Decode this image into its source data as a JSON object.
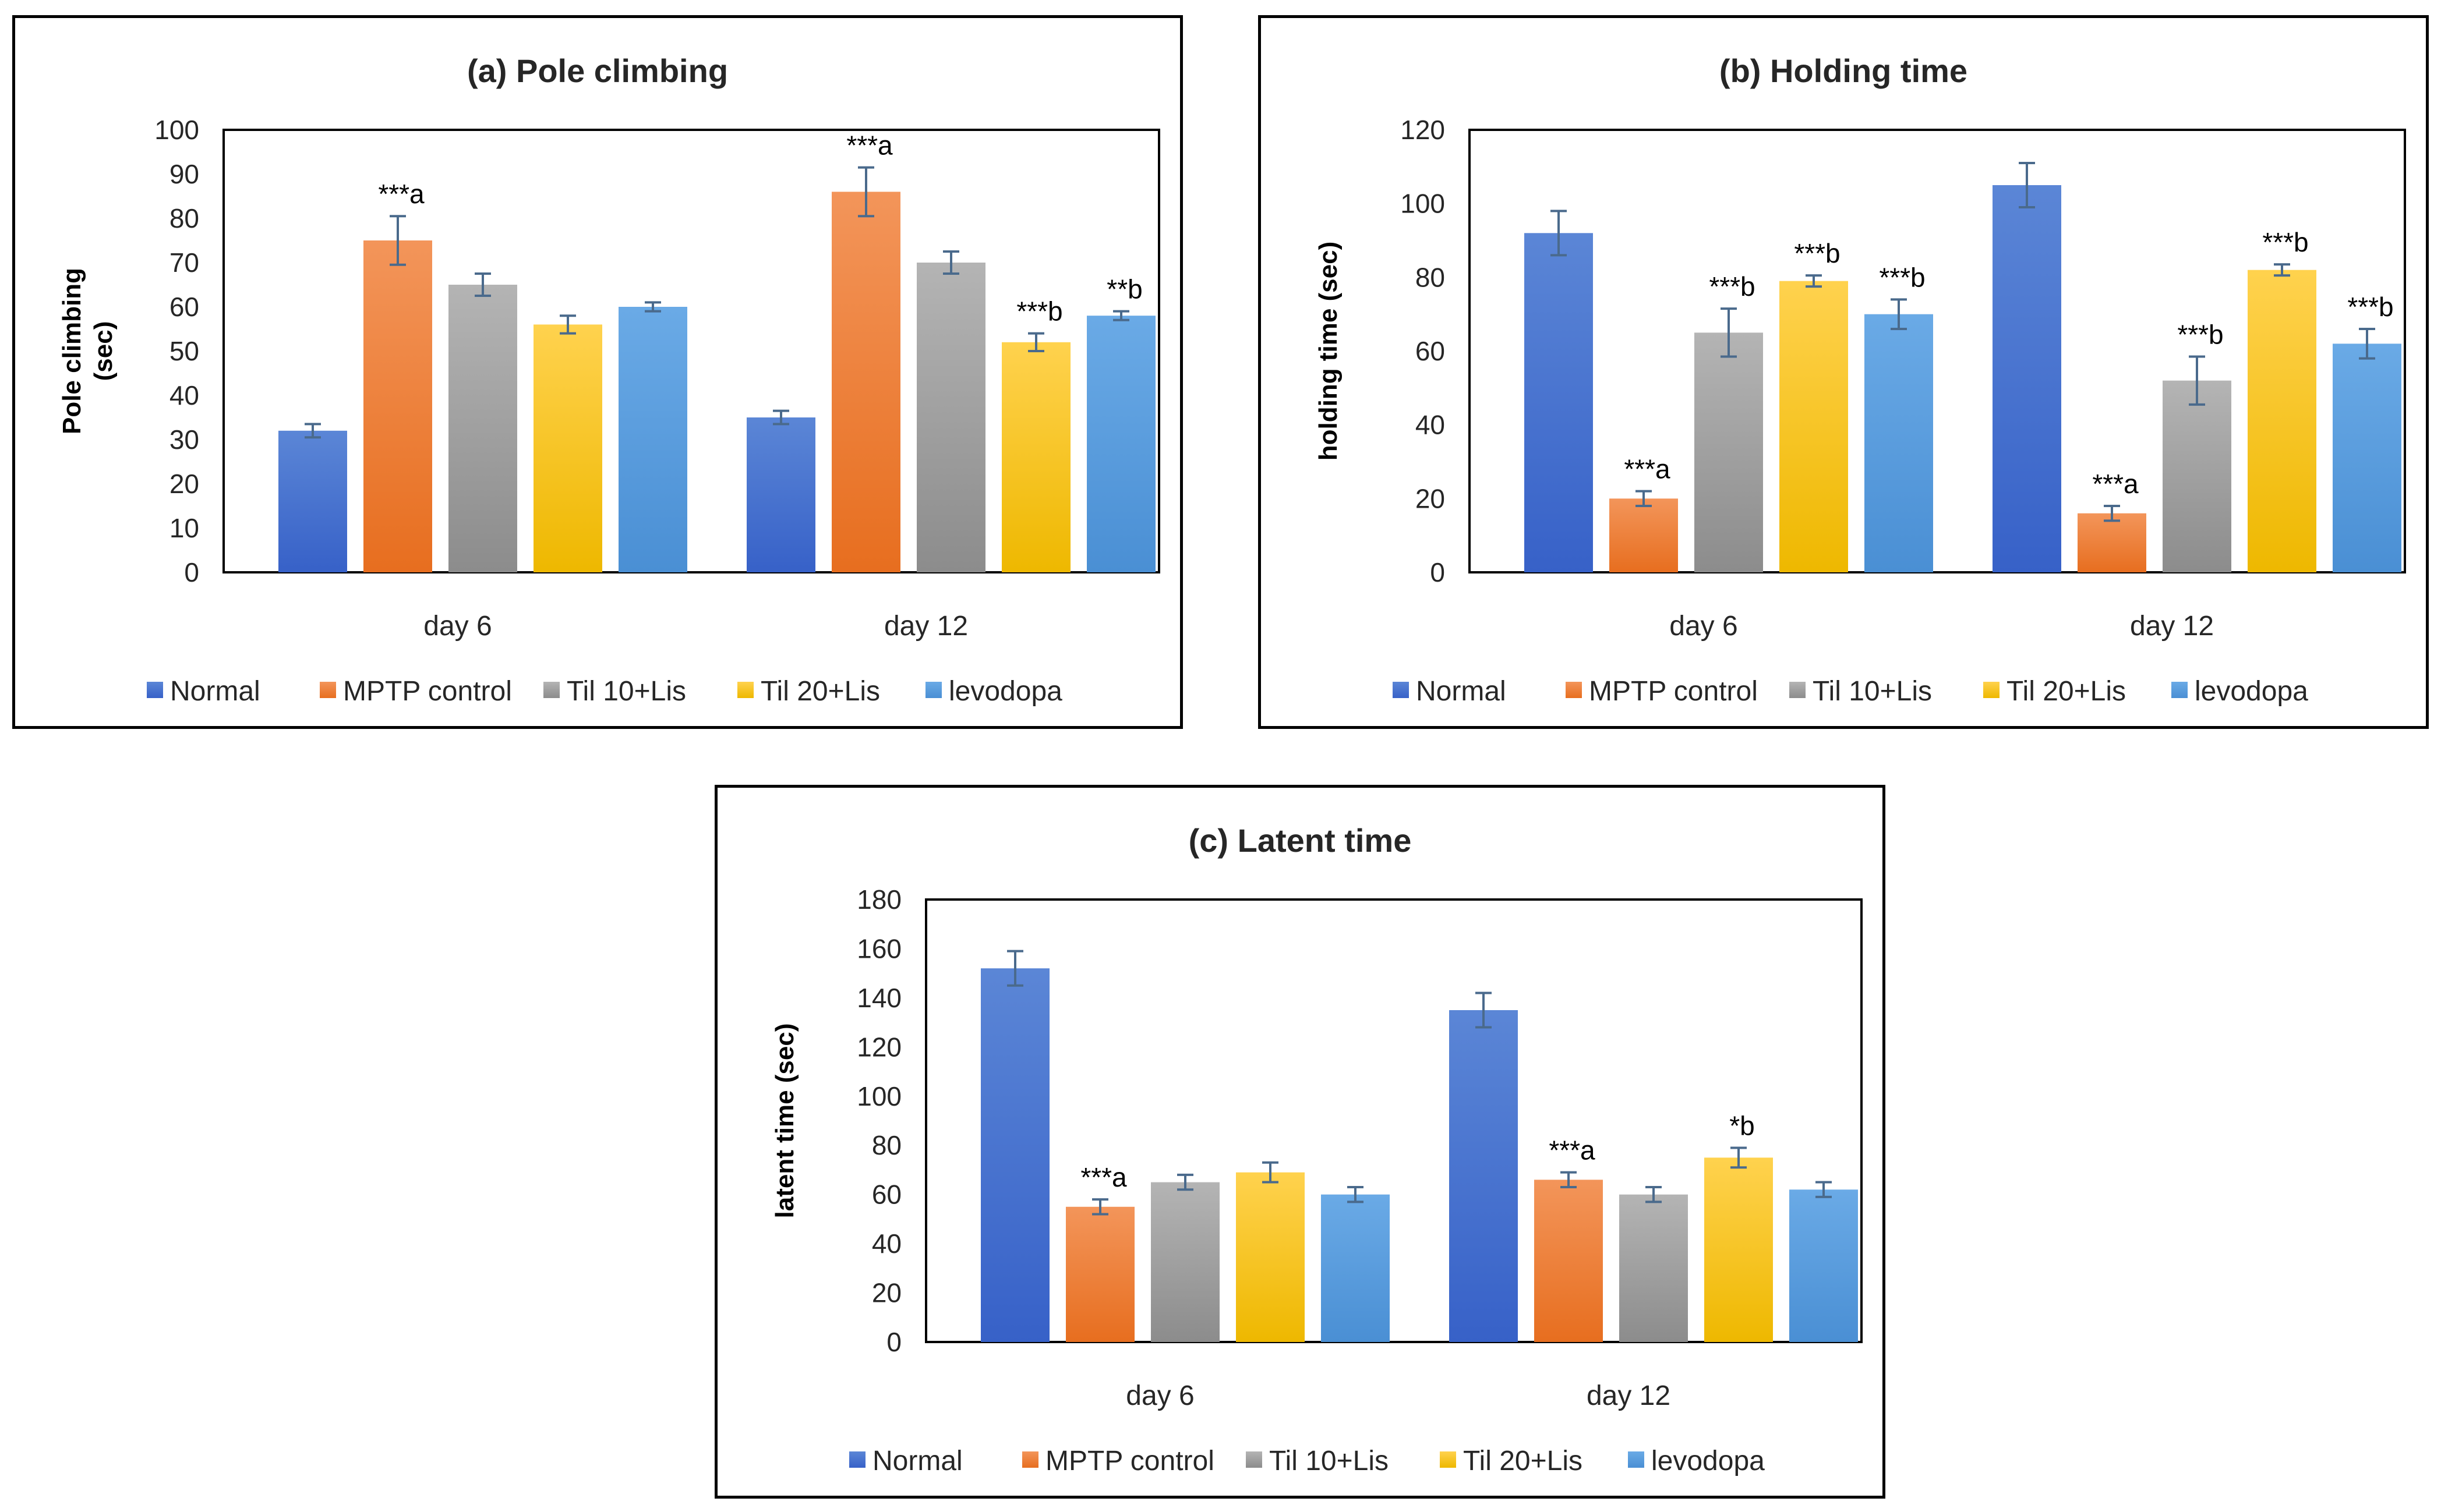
{
  "chart_data": [
    {
      "type": "bar",
      "title": "(a) Pole climbing",
      "xlabel": "",
      "ylabel": "Pole climbing (sec)",
      "ylabel_lines": [
        "Pole climbing",
        "(sec)"
      ],
      "ylim": [
        0,
        100
      ],
      "yticks": [
        0,
        10,
        20,
        30,
        40,
        50,
        60,
        70,
        80,
        90,
        100
      ],
      "categories": [
        "day 6",
        "day 12"
      ],
      "series": [
        {
          "name": "Normal",
          "values": [
            32,
            35
          ],
          "errors": [
            1.5,
            1.5
          ],
          "annotations": [
            "",
            ""
          ]
        },
        {
          "name": "MPTP control",
          "values": [
            75,
            86
          ],
          "errors": [
            5.5,
            5.5
          ],
          "annotations": [
            "***a",
            "***a"
          ]
        },
        {
          "name": "Til 10+Lis",
          "values": [
            65,
            70
          ],
          "errors": [
            2.5,
            2.5
          ],
          "annotations": [
            "",
            ""
          ]
        },
        {
          "name": "Til 20+Lis",
          "values": [
            56,
            52
          ],
          "errors": [
            2,
            2
          ],
          "annotations": [
            "",
            "***b"
          ]
        },
        {
          "name": "levodopa",
          "values": [
            60,
            58
          ],
          "errors": [
            1,
            1
          ],
          "annotations": [
            "",
            "**b"
          ]
        }
      ],
      "legend": "bottom"
    },
    {
      "type": "bar",
      "title": "(b) Holding time",
      "xlabel": "",
      "ylabel": "holding time (sec)",
      "ylabel_lines": [
        "holding time (sec)"
      ],
      "ylim": [
        0,
        120
      ],
      "yticks": [
        0,
        20,
        40,
        60,
        80,
        100,
        120
      ],
      "categories": [
        "day 6",
        "day 12"
      ],
      "series": [
        {
          "name": "Normal",
          "values": [
            92,
            105
          ],
          "errors": [
            6,
            6
          ],
          "annotations": [
            "",
            ""
          ]
        },
        {
          "name": "MPTP control",
          "values": [
            20,
            16
          ],
          "errors": [
            2,
            2
          ],
          "annotations": [
            "***a",
            "***a"
          ]
        },
        {
          "name": "Til 10+Lis",
          "values": [
            65,
            52
          ],
          "errors": [
            6.5,
            6.5
          ],
          "annotations": [
            "***b",
            "***b"
          ]
        },
        {
          "name": "Til 20+Lis",
          "values": [
            79,
            82
          ],
          "errors": [
            1.5,
            1.5
          ],
          "annotations": [
            "***b",
            "***b"
          ]
        },
        {
          "name": "levodopa",
          "values": [
            70,
            62
          ],
          "errors": [
            4,
            4
          ],
          "annotations": [
            "***b",
            "***b"
          ]
        }
      ],
      "legend": "bottom"
    },
    {
      "type": "bar",
      "title": "(c) Latent time",
      "xlabel": "",
      "ylabel": "latent time (sec)",
      "ylabel_lines": [
        "latent time (sec)"
      ],
      "ylim": [
        0,
        180
      ],
      "yticks": [
        0,
        20,
        40,
        60,
        80,
        100,
        120,
        140,
        160,
        180
      ],
      "categories": [
        "day 6",
        "day 12"
      ],
      "series": [
        {
          "name": "Normal",
          "values": [
            152,
            135
          ],
          "errors": [
            7,
            7
          ],
          "annotations": [
            "",
            ""
          ]
        },
        {
          "name": "MPTP control",
          "values": [
            55,
            66
          ],
          "errors": [
            3,
            3
          ],
          "annotations": [
            "***a",
            "***a"
          ]
        },
        {
          "name": "Til 10+Lis",
          "values": [
            65,
            60
          ],
          "errors": [
            3,
            3
          ],
          "annotations": [
            "",
            ""
          ]
        },
        {
          "name": "Til 20+Lis",
          "values": [
            69,
            75
          ],
          "errors": [
            4,
            4
          ],
          "annotations": [
            "",
            "*b"
          ]
        },
        {
          "name": "levodopa",
          "values": [
            60,
            62
          ],
          "errors": [
            3,
            3
          ],
          "annotations": [
            "",
            ""
          ]
        }
      ],
      "legend": "bottom"
    }
  ],
  "colors": {
    "Normal": [
      "#5B86D6",
      "#3761C8"
    ],
    "MPTP control": [
      "#F3955A",
      "#E76E1F"
    ],
    "Til 10+Lis": [
      "#B4B4B4",
      "#8C8C8C"
    ],
    "Til 20+Lis": [
      "#FFD24E",
      "#EEB800"
    ],
    "levodopa": [
      "#6AAAE6",
      "#4A8FD4"
    ],
    "errorbar": "#4A6A8C"
  }
}
